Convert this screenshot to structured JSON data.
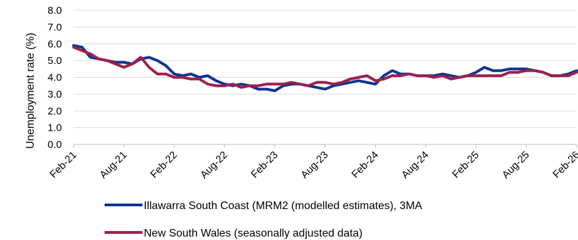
{
  "chart_data": {
    "type": "line",
    "title": "",
    "xlabel": "",
    "ylabel": "Unemployment rate (%)",
    "ylim": [
      0,
      8
    ],
    "y_ticks": [
      "0.0",
      "1.0",
      "2.0",
      "3.0",
      "4.0",
      "5.0",
      "6.0",
      "7.0",
      "8.0"
    ],
    "x_tick_labels": [
      "Feb-21",
      "Aug-21",
      "Feb-22",
      "Aug-22",
      "Feb-23",
      "Aug-23",
      "Feb-24",
      "Aug-24",
      "Feb-25",
      "Aug-25",
      "Feb-26"
    ],
    "x": [
      "Feb-21",
      "Mar-21",
      "Apr-21",
      "May-21",
      "Jun-21",
      "Jul-21",
      "Aug-21",
      "Sep-21",
      "Oct-21",
      "Nov-21",
      "Dec-21",
      "Jan-22",
      "Feb-22",
      "Mar-22",
      "Apr-22",
      "May-22",
      "Jun-22",
      "Jul-22",
      "Aug-22",
      "Sep-22",
      "Oct-22",
      "Nov-22",
      "Dec-22",
      "Jan-23",
      "Feb-23",
      "Mar-23",
      "Apr-23",
      "May-23",
      "Jun-23",
      "Jul-23",
      "Aug-23",
      "Sep-23",
      "Oct-23",
      "Nov-23",
      "Dec-23",
      "Jan-24",
      "Feb-24",
      "Mar-24",
      "Apr-24",
      "May-24",
      "Jun-24",
      "Jul-24",
      "Aug-24",
      "Sep-24",
      "Oct-24",
      "Nov-24",
      "Dec-24",
      "Jan-25",
      "Feb-25",
      "Mar-25",
      "Apr-25",
      "May-25",
      "Jun-25",
      "Jul-25",
      "Aug-25",
      "Sep-25",
      "Oct-25",
      "Nov-25",
      "Dec-25",
      "Jan-26",
      "Feb-26"
    ],
    "grid": true,
    "legend_position": "bottom",
    "series": [
      {
        "name": "Illawarra South Coast (MRM2 (modelled estimates), 3MA",
        "color": "#0d3592",
        "values": [
          5.9,
          5.8,
          5.2,
          5.1,
          5.0,
          4.9,
          4.9,
          4.8,
          5.1,
          5.2,
          5.0,
          4.7,
          4.2,
          4.1,
          4.2,
          4.0,
          4.1,
          3.8,
          3.6,
          3.5,
          3.6,
          3.5,
          3.3,
          3.3,
          3.2,
          3.5,
          3.6,
          3.6,
          3.5,
          3.4,
          3.3,
          3.5,
          3.6,
          3.7,
          3.8,
          3.7,
          3.6,
          4.1,
          4.4,
          4.2,
          4.2,
          4.1,
          4.1,
          4.1,
          4.2,
          4.1,
          4.0,
          4.1,
          4.3,
          4.6,
          4.4,
          4.4,
          4.5,
          4.5,
          4.5,
          4.4,
          4.3,
          4.1,
          4.1,
          4.2,
          4.4
        ]
      },
      {
        "name": "New South Wales (seasonally adjusted data)",
        "color": "#9b2050",
        "values": [
          5.8,
          5.6,
          5.4,
          5.1,
          5.0,
          4.8,
          4.6,
          4.8,
          5.2,
          4.6,
          4.2,
          4.2,
          4.0,
          4.0,
          3.9,
          3.9,
          3.6,
          3.5,
          3.5,
          3.6,
          3.4,
          3.5,
          3.5,
          3.6,
          3.6,
          3.6,
          3.7,
          3.6,
          3.5,
          3.7,
          3.7,
          3.6,
          3.7,
          3.9,
          4.0,
          4.1,
          3.8,
          3.9,
          4.1,
          4.1,
          4.2,
          4.1,
          4.1,
          4.0,
          4.1,
          3.9,
          4.0,
          4.1,
          4.1,
          4.1,
          4.1,
          4.1,
          4.3,
          4.3,
          4.4,
          4.4,
          4.3,
          4.1,
          4.1,
          4.1,
          4.3
        ]
      }
    ]
  }
}
